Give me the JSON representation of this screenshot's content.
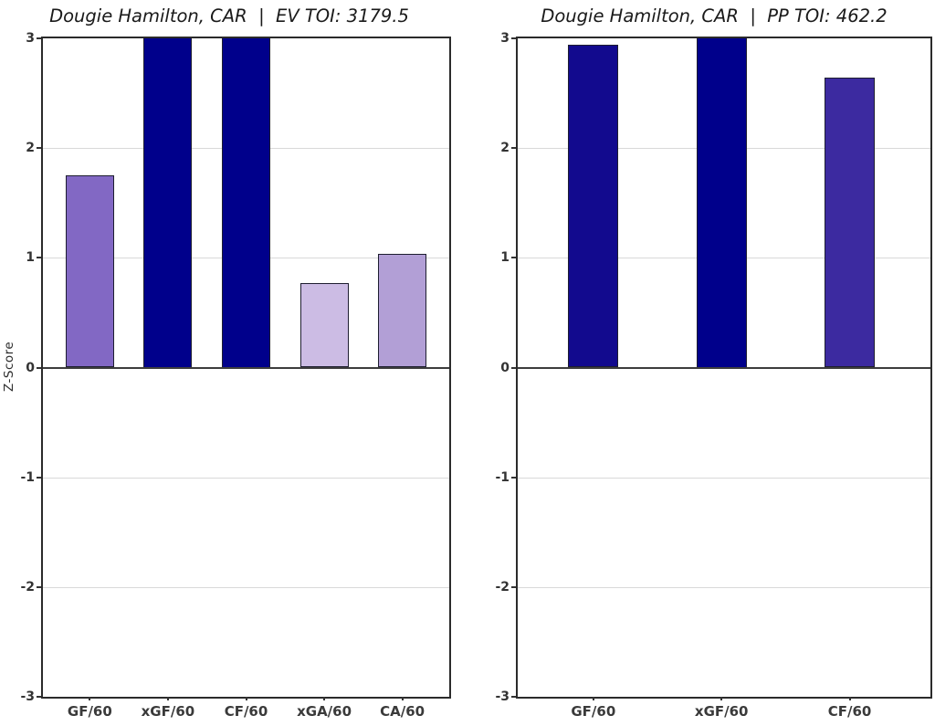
{
  "accent_colors": {
    "navy": "#00008b",
    "grid": "#d9d9d9",
    "zero_line": "#3d3d3d",
    "tick_text": "#333333",
    "title_text": "#1a1a1a"
  },
  "chart_data": [
    {
      "type": "bar",
      "title": "Dougie Hamilton, CAR  |  EV TOI: 3179.5",
      "player": "Dougie Hamilton",
      "team": "CAR",
      "strength": "EV",
      "toi": 3179.5,
      "ylabel": "Z-Score",
      "xlabel": "",
      "categories": [
        "GF/60",
        "xGF/60",
        "CF/60",
        "xGA/60",
        "CA/60"
      ],
      "values": [
        1.75,
        3.0,
        3.0,
        0.77,
        1.04
      ],
      "clipped_at_top": [
        false,
        true,
        true,
        false,
        false
      ],
      "bar_colors": [
        "#8268c4",
        "#00008b",
        "#00008b",
        "#ccbce4",
        "#b29fd6"
      ],
      "ylim": [
        -3,
        3
      ],
      "yticks": [
        3,
        2,
        1,
        0,
        -1,
        -2,
        -3
      ],
      "xlim": [
        -0.6,
        4.6
      ],
      "bar_width_units": 0.62,
      "grid": true,
      "legend": "none"
    },
    {
      "type": "bar",
      "title": "Dougie Hamilton, CAR  |  PP TOI: 462.2",
      "player": "Dougie Hamilton",
      "team": "CAR",
      "strength": "PP",
      "toi": 462.2,
      "ylabel": "",
      "xlabel": "",
      "categories": [
        "GF/60",
        "xGF/60",
        "CF/60"
      ],
      "values": [
        2.94,
        3.0,
        2.64
      ],
      "clipped_at_top": [
        false,
        true,
        false
      ],
      "bar_colors": [
        "#120a8e",
        "#00008b",
        "#3c2aa0"
      ],
      "ylim": [
        -3,
        3
      ],
      "yticks": [
        3,
        2,
        1,
        0,
        -1,
        -2,
        -3
      ],
      "xlim": [
        -0.59,
        2.63
      ],
      "bar_width_units": 0.39,
      "grid": true,
      "legend": "none"
    }
  ]
}
